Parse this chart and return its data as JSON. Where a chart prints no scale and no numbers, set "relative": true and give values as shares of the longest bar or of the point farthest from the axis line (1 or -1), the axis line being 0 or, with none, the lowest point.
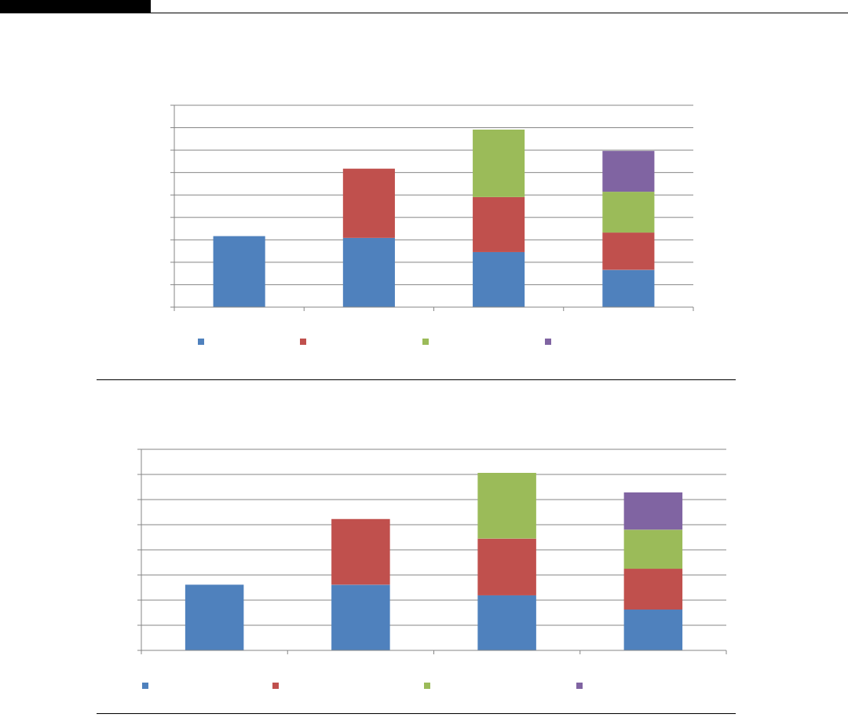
{
  "chart_data": [
    {
      "type": "bar",
      "stacked": true,
      "relative": true,
      "categories": [
        null,
        null,
        null,
        null
      ],
      "grid": "y",
      "series": [
        {
          "color": "#4f81bd",
          "values": [
            0.4,
            0.39,
            0.31,
            0.21
          ]
        },
        {
          "color": "#c0504d",
          "values": [
            null,
            0.39,
            0.31,
            0.21
          ]
        },
        {
          "color": "#9bbb59",
          "values": [
            null,
            null,
            0.38,
            0.23
          ]
        },
        {
          "color": "#8064a2",
          "values": [
            null,
            null,
            null,
            0.23
          ]
        }
      ]
    },
    {
      "type": "bar",
      "stacked": true,
      "relative": true,
      "categories": [
        null,
        null,
        null,
        null
      ],
      "grid": "y",
      "series": [
        {
          "color": "#4f81bd",
          "values": [
            0.37,
            0.37,
            0.31,
            0.23
          ]
        },
        {
          "color": "#c0504d",
          "values": [
            null,
            0.37,
            0.32,
            0.23
          ]
        },
        {
          "color": "#9bbb59",
          "values": [
            null,
            null,
            0.37,
            0.22
          ]
        },
        {
          "color": "#8064a2",
          "values": [
            null,
            null,
            null,
            0.21
          ]
        }
      ]
    }
  ]
}
